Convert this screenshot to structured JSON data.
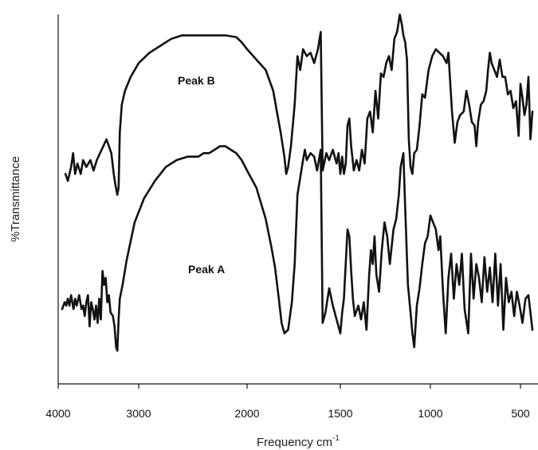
{
  "chart_data": {
    "type": "line",
    "title": "",
    "xlabel": "Frequency cm",
    "xlabel_superscript": "-1",
    "ylabel": "%Transmittance",
    "x_ticks": [
      4000,
      3000,
      2000,
      1500,
      1000,
      500
    ],
    "x_tick_labels": [
      "4000",
      "3000",
      "2000",
      "1500",
      "1000",
      "500"
    ],
    "x_scale": "reciprocal (wavenumber axis)",
    "y_ticks_shown": false,
    "grid": false,
    "legend": "none",
    "line_color": "#111111",
    "series": [
      {
        "name": "Peak B",
        "annotation": "Peak B",
        "points": [
          [
            3910,
            56
          ],
          [
            3880,
            54
          ],
          [
            3840,
            58
          ],
          [
            3815,
            62
          ],
          [
            3790,
            56
          ],
          [
            3760,
            59
          ],
          [
            3720,
            56
          ],
          [
            3690,
            60
          ],
          [
            3650,
            58
          ],
          [
            3600,
            60
          ],
          [
            3560,
            57
          ],
          [
            3520,
            60
          ],
          [
            3480,
            62
          ],
          [
            3440,
            64
          ],
          [
            3400,
            66
          ],
          [
            3370,
            64
          ],
          [
            3340,
            62
          ],
          [
            3310,
            56
          ],
          [
            3290,
            53
          ],
          [
            3265,
            50
          ],
          [
            3250,
            52
          ],
          [
            3235,
            68
          ],
          [
            3210,
            76
          ],
          [
            3170,
            80
          ],
          [
            3100,
            84
          ],
          [
            3000,
            88
          ],
          [
            2900,
            91
          ],
          [
            2800,
            93
          ],
          [
            2700,
            95
          ],
          [
            2600,
            96
          ],
          [
            2500,
            96
          ],
          [
            2400,
            96
          ],
          [
            2300,
            96
          ],
          [
            2200,
            96
          ],
          [
            2100,
            95.5
          ],
          [
            2050,
            94
          ],
          [
            2000,
            92
          ],
          [
            1950,
            89
          ],
          [
            1900,
            86
          ],
          [
            1860,
            80
          ],
          [
            1840,
            74
          ],
          [
            1820,
            68
          ],
          [
            1800,
            61
          ],
          [
            1790,
            56
          ],
          [
            1780,
            58
          ],
          [
            1765,
            64
          ],
          [
            1745,
            76
          ],
          [
            1730,
            90
          ],
          [
            1715,
            86
          ],
          [
            1700,
            92
          ],
          [
            1680,
            90
          ],
          [
            1660,
            91
          ],
          [
            1640,
            88
          ],
          [
            1620,
            92
          ],
          [
            1605,
            97
          ],
          [
            1595,
            57
          ],
          [
            1575,
            62
          ],
          [
            1560,
            60
          ],
          [
            1540,
            63
          ],
          [
            1520,
            59
          ],
          [
            1510,
            62
          ],
          [
            1500,
            56
          ],
          [
            1490,
            61
          ],
          [
            1480,
            56
          ],
          [
            1470,
            59
          ],
          [
            1460,
            70
          ],
          [
            1450,
            72
          ],
          [
            1440,
            64
          ],
          [
            1425,
            57
          ],
          [
            1410,
            60
          ],
          [
            1395,
            57
          ],
          [
            1380,
            63
          ],
          [
            1365,
            59
          ],
          [
            1350,
            72
          ],
          [
            1335,
            74
          ],
          [
            1320,
            68
          ],
          [
            1305,
            80
          ],
          [
            1290,
            72
          ],
          [
            1275,
            85
          ],
          [
            1260,
            84
          ],
          [
            1245,
            88
          ],
          [
            1230,
            90
          ],
          [
            1215,
            86
          ],
          [
            1200,
            95
          ],
          [
            1185,
            97
          ],
          [
            1170,
            102
          ],
          [
            1158,
            99
          ],
          [
            1150,
            96
          ],
          [
            1140,
            94
          ],
          [
            1130,
            89
          ],
          [
            1120,
            66
          ],
          [
            1110,
            58
          ],
          [
            1100,
            56
          ],
          [
            1090,
            62
          ],
          [
            1075,
            63
          ],
          [
            1060,
            70
          ],
          [
            1045,
            79
          ],
          [
            1030,
            78
          ],
          [
            1010,
            86
          ],
          [
            990,
            90
          ],
          [
            970,
            92
          ],
          [
            950,
            91
          ],
          [
            930,
            90
          ],
          [
            910,
            88
          ],
          [
            900,
            91
          ],
          [
            880,
            74
          ],
          [
            865,
            65
          ],
          [
            850,
            71
          ],
          [
            835,
            73
          ],
          [
            815,
            74
          ],
          [
            800,
            80
          ],
          [
            785,
            76
          ],
          [
            770,
            71
          ],
          [
            755,
            70
          ],
          [
            745,
            64
          ],
          [
            735,
            71
          ],
          [
            720,
            76
          ],
          [
            705,
            77
          ],
          [
            690,
            80
          ],
          [
            680,
            86
          ],
          [
            670,
            91
          ],
          [
            660,
            88
          ],
          [
            645,
            86
          ],
          [
            630,
            84
          ],
          [
            615,
            89
          ],
          [
            600,
            84
          ],
          [
            585,
            84
          ],
          [
            570,
            79
          ],
          [
            555,
            80
          ],
          [
            540,
            75
          ],
          [
            525,
            77
          ],
          [
            510,
            67
          ],
          [
            500,
            82
          ],
          [
            490,
            78
          ],
          [
            480,
            73
          ],
          [
            470,
            76
          ],
          [
            460,
            84
          ],
          [
            450,
            66
          ],
          [
            440,
            74
          ]
        ]
      },
      {
        "name": "Peak A",
        "annotation": "Peak A",
        "points": [
          [
            3950,
            17
          ],
          [
            3920,
            19
          ],
          [
            3900,
            18
          ],
          [
            3880,
            20
          ],
          [
            3860,
            18
          ],
          [
            3840,
            21
          ],
          [
            3810,
            17
          ],
          [
            3790,
            20
          ],
          [
            3770,
            18
          ],
          [
            3740,
            21
          ],
          [
            3710,
            17
          ],
          [
            3690,
            18
          ],
          [
            3670,
            15
          ],
          [
            3650,
            19
          ],
          [
            3630,
            21
          ],
          [
            3610,
            12
          ],
          [
            3590,
            19
          ],
          [
            3570,
            17
          ],
          [
            3550,
            14
          ],
          [
            3530,
            18
          ],
          [
            3510,
            13
          ],
          [
            3490,
            20
          ],
          [
            3470,
            14
          ],
          [
            3450,
            28
          ],
          [
            3430,
            24
          ],
          [
            3410,
            26
          ],
          [
            3390,
            19
          ],
          [
            3370,
            21
          ],
          [
            3350,
            16
          ],
          [
            3320,
            15
          ],
          [
            3300,
            12
          ],
          [
            3280,
            6
          ],
          [
            3265,
            5
          ],
          [
            3250,
            14
          ],
          [
            3235,
            20
          ],
          [
            3200,
            24
          ],
          [
            3150,
            31
          ],
          [
            3050,
            42
          ],
          [
            2950,
            49
          ],
          [
            2850,
            54
          ],
          [
            2750,
            58
          ],
          [
            2650,
            60
          ],
          [
            2550,
            61
          ],
          [
            2450,
            61
          ],
          [
            2400,
            62
          ],
          [
            2350,
            62
          ],
          [
            2300,
            63
          ],
          [
            2250,
            64
          ],
          [
            2200,
            64
          ],
          [
            2150,
            63
          ],
          [
            2100,
            62
          ],
          [
            2050,
            60
          ],
          [
            2000,
            57
          ],
          [
            1950,
            52
          ],
          [
            1900,
            43
          ],
          [
            1870,
            35
          ],
          [
            1850,
            29
          ],
          [
            1830,
            20
          ],
          [
            1815,
            13
          ],
          [
            1800,
            10
          ],
          [
            1780,
            11
          ],
          [
            1760,
            19
          ],
          [
            1745,
            30
          ],
          [
            1730,
            50
          ],
          [
            1715,
            55
          ],
          [
            1700,
            60
          ],
          [
            1690,
            63
          ],
          [
            1680,
            60
          ],
          [
            1660,
            62
          ],
          [
            1640,
            61
          ],
          [
            1625,
            57
          ],
          [
            1605,
            63
          ],
          [
            1595,
            13
          ],
          [
            1580,
            16
          ],
          [
            1560,
            23
          ],
          [
            1540,
            18
          ],
          [
            1520,
            14
          ],
          [
            1500,
            10
          ],
          [
            1490,
            16
          ],
          [
            1480,
            20
          ],
          [
            1460,
            40
          ],
          [
            1450,
            38
          ],
          [
            1440,
            28
          ],
          [
            1430,
            20
          ],
          [
            1420,
            15
          ],
          [
            1400,
            18
          ],
          [
            1385,
            14
          ],
          [
            1370,
            19
          ],
          [
            1355,
            11
          ],
          [
            1340,
            27
          ],
          [
            1330,
            34
          ],
          [
            1320,
            30
          ],
          [
            1310,
            38
          ],
          [
            1300,
            27
          ],
          [
            1285,
            22
          ],
          [
            1270,
            34
          ],
          [
            1255,
            42
          ],
          [
            1240,
            38
          ],
          [
            1225,
            30
          ],
          [
            1205,
            40
          ],
          [
            1190,
            43
          ],
          [
            1175,
            50
          ],
          [
            1165,
            58
          ],
          [
            1150,
            62
          ],
          [
            1140,
            46
          ],
          [
            1125,
            24
          ],
          [
            1110,
            16
          ],
          [
            1100,
            10
          ],
          [
            1090,
            6
          ],
          [
            1075,
            18
          ],
          [
            1060,
            23
          ],
          [
            1045,
            30
          ],
          [
            1030,
            36
          ],
          [
            1015,
            38
          ],
          [
            1000,
            44
          ],
          [
            985,
            42
          ],
          [
            970,
            40
          ],
          [
            955,
            34
          ],
          [
            945,
            38
          ],
          [
            930,
            22
          ],
          [
            915,
            10
          ],
          [
            900,
            26
          ],
          [
            885,
            33
          ],
          [
            870,
            20
          ],
          [
            855,
            30
          ],
          [
            840,
            24
          ],
          [
            825,
            33
          ],
          [
            810,
            17
          ],
          [
            790,
            10
          ],
          [
            775,
            33
          ],
          [
            760,
            20
          ],
          [
            745,
            30
          ],
          [
            730,
            26
          ],
          [
            715,
            19
          ],
          [
            700,
            32
          ],
          [
            685,
            22
          ],
          [
            670,
            29
          ],
          [
            655,
            19
          ],
          [
            640,
            33
          ],
          [
            625,
            18
          ],
          [
            610,
            30
          ],
          [
            595,
            11
          ],
          [
            580,
            26
          ],
          [
            565,
            19
          ],
          [
            550,
            22
          ],
          [
            535,
            15
          ],
          [
            520,
            22
          ],
          [
            505,
            18
          ],
          [
            490,
            13
          ],
          [
            475,
            20
          ],
          [
            460,
            21
          ],
          [
            450,
            16
          ],
          [
            440,
            11
          ]
        ]
      }
    ]
  }
}
